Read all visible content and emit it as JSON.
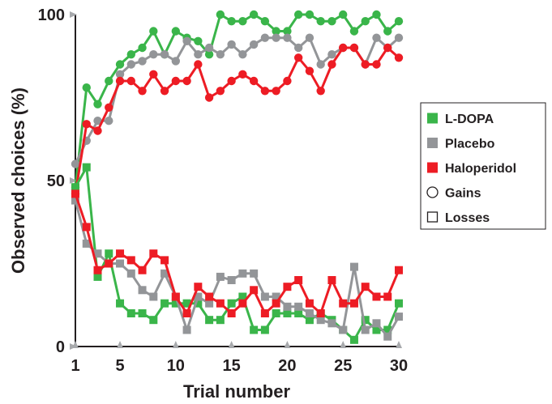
{
  "chart_data": {
    "type": "line",
    "xlabel": "Trial number",
    "ylabel": "Observed choices (%)",
    "xlim": [
      1,
      30
    ],
    "ylim": [
      0,
      100
    ],
    "x_ticks": [
      1,
      5,
      10,
      15,
      20,
      25,
      30
    ],
    "y_ticks": [
      0,
      50,
      100
    ],
    "grid": false,
    "legend_position": "right",
    "legend": [
      {
        "label": "L-DOPA",
        "swatch": "filled-square",
        "color": "#3ab54a"
      },
      {
        "label": "Placebo",
        "swatch": "filled-square",
        "color": "#939598"
      },
      {
        "label": "Haloperidol",
        "swatch": "filled-square",
        "color": "#ed1c24"
      },
      {
        "label": "Gains",
        "swatch": "open-circle",
        "color": "#231f20"
      },
      {
        "label": "Losses",
        "swatch": "open-square",
        "color": "#231f20"
      }
    ],
    "series": [
      {
        "name": "L-DOPA",
        "outcome": "Gains",
        "color": "#3ab54a",
        "marker": "circle",
        "x": [
          1,
          2,
          3,
          4,
          5,
          6,
          7,
          8,
          9,
          10,
          11,
          12,
          13,
          14,
          15,
          16,
          17,
          18,
          19,
          20,
          21,
          22,
          23,
          24,
          25,
          26,
          27,
          28,
          29,
          30
        ],
        "y": [
          48,
          78,
          73,
          80,
          85,
          88,
          90,
          95,
          88,
          95,
          93,
          92,
          88,
          100,
          98,
          98,
          100,
          98,
          95,
          95,
          100,
          100,
          98,
          98,
          100,
          95,
          98,
          100,
          95,
          98
        ]
      },
      {
        "name": "Placebo",
        "outcome": "Gains",
        "color": "#939598",
        "marker": "circle",
        "x": [
          1,
          2,
          3,
          4,
          5,
          6,
          7,
          8,
          9,
          10,
          11,
          12,
          13,
          14,
          15,
          16,
          17,
          18,
          19,
          20,
          21,
          22,
          23,
          24,
          25,
          26,
          27,
          28,
          29,
          30
        ],
        "y": [
          55,
          62,
          68,
          68,
          82,
          85,
          86,
          88,
          88,
          86,
          92,
          88,
          90,
          88,
          91,
          88,
          91,
          93,
          93,
          93,
          90,
          93,
          85,
          88,
          90,
          90,
          85,
          93,
          90,
          93
        ]
      },
      {
        "name": "Haloperidol",
        "outcome": "Gains",
        "color": "#ed1c24",
        "marker": "circle",
        "x": [
          1,
          2,
          3,
          4,
          5,
          6,
          7,
          8,
          9,
          10,
          11,
          12,
          13,
          14,
          15,
          16,
          17,
          18,
          19,
          20,
          21,
          22,
          23,
          24,
          25,
          26,
          27,
          28,
          29,
          30
        ],
        "y": [
          46,
          67,
          65,
          72,
          80,
          80,
          77,
          82,
          77,
          80,
          80,
          85,
          75,
          77,
          80,
          82,
          80,
          77,
          77,
          80,
          87,
          83,
          77,
          85,
          90,
          90,
          85,
          85,
          90,
          87
        ]
      },
      {
        "name": "L-DOPA",
        "outcome": "Losses",
        "color": "#3ab54a",
        "marker": "square",
        "x": [
          1,
          2,
          3,
          4,
          5,
          6,
          7,
          8,
          9,
          10,
          11,
          12,
          13,
          14,
          15,
          16,
          17,
          18,
          19,
          20,
          21,
          22,
          23,
          24,
          25,
          26,
          27,
          28,
          29,
          30
        ],
        "y": [
          48,
          54,
          21,
          28,
          13,
          10,
          10,
          8,
          13,
          13,
          13,
          13,
          8,
          8,
          13,
          15,
          5,
          5,
          10,
          10,
          10,
          8,
          10,
          8,
          5,
          2,
          8,
          5,
          5,
          13
        ]
      },
      {
        "name": "Placebo",
        "outcome": "Losses",
        "color": "#939598",
        "marker": "square",
        "x": [
          1,
          2,
          3,
          4,
          5,
          6,
          7,
          8,
          9,
          10,
          11,
          12,
          13,
          14,
          15,
          16,
          17,
          18,
          19,
          20,
          21,
          22,
          23,
          24,
          25,
          26,
          27,
          28,
          29,
          30
        ],
        "y": [
          44,
          31,
          28,
          25,
          25,
          22,
          17,
          15,
          22,
          15,
          5,
          15,
          13,
          21,
          20,
          22,
          22,
          15,
          15,
          12,
          12,
          10,
          8,
          7,
          5,
          24,
          5,
          7,
          3,
          9
        ]
      },
      {
        "name": "Haloperidol",
        "outcome": "Losses",
        "color": "#ed1c24",
        "marker": "square",
        "x": [
          1,
          2,
          3,
          4,
          5,
          6,
          7,
          8,
          9,
          10,
          11,
          12,
          13,
          14,
          15,
          16,
          17,
          18,
          19,
          20,
          21,
          22,
          23,
          24,
          25,
          26,
          27,
          28,
          29,
          30
        ],
        "y": [
          46,
          36,
          23,
          25,
          28,
          26,
          23,
          28,
          26,
          15,
          10,
          18,
          15,
          13,
          10,
          13,
          17,
          10,
          13,
          18,
          20,
          13,
          10,
          20,
          13,
          13,
          18,
          15,
          15,
          23
        ]
      }
    ]
  }
}
